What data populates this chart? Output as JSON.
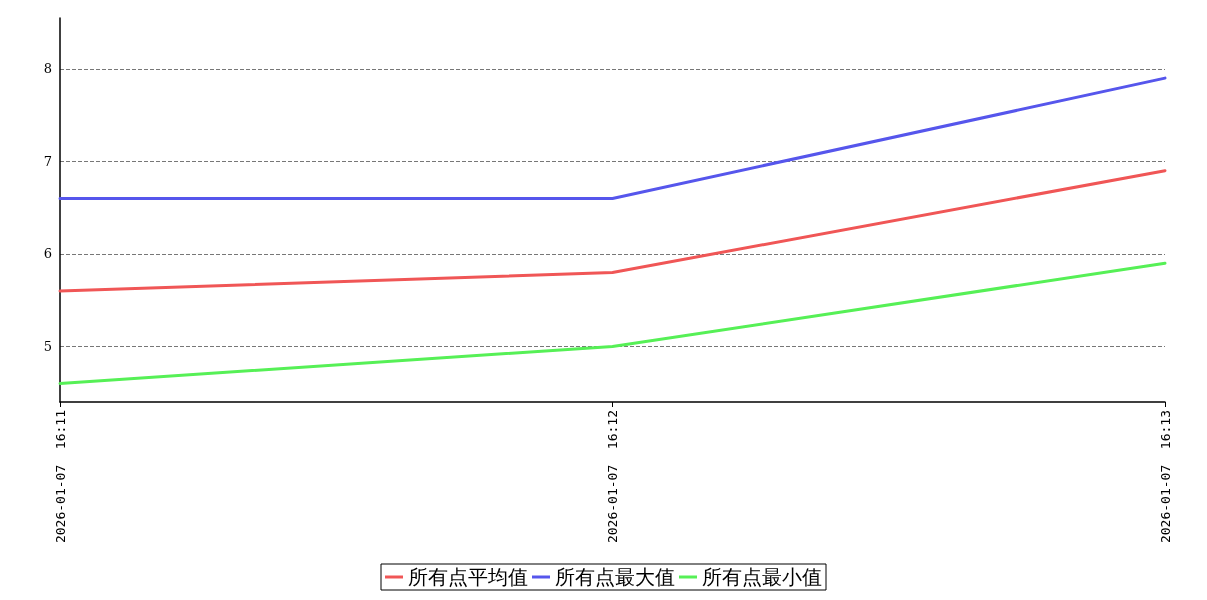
{
  "chart_data": {
    "type": "line",
    "categories": [
      "2026-01-07  16:11",
      "2026-01-07  16:12",
      "2026-01-07  16:13"
    ],
    "series": [
      {
        "name": "所有点平均值",
        "color": "#f05656",
        "values": [
          5.6,
          5.8,
          6.9
        ]
      },
      {
        "name": "所有点最大值",
        "color": "#5656ec",
        "values": [
          6.6,
          6.6,
          7.9
        ]
      },
      {
        "name": "所有点最小值",
        "color": "#56f056",
        "values": [
          4.6,
          5.0,
          5.9
        ]
      }
    ],
    "ylim": [
      4.4,
      8.55
    ],
    "yticks": [
      5,
      6,
      7,
      8
    ],
    "grid": "y",
    "legend": "bottom",
    "marker": "none",
    "line_style": "solid"
  }
}
